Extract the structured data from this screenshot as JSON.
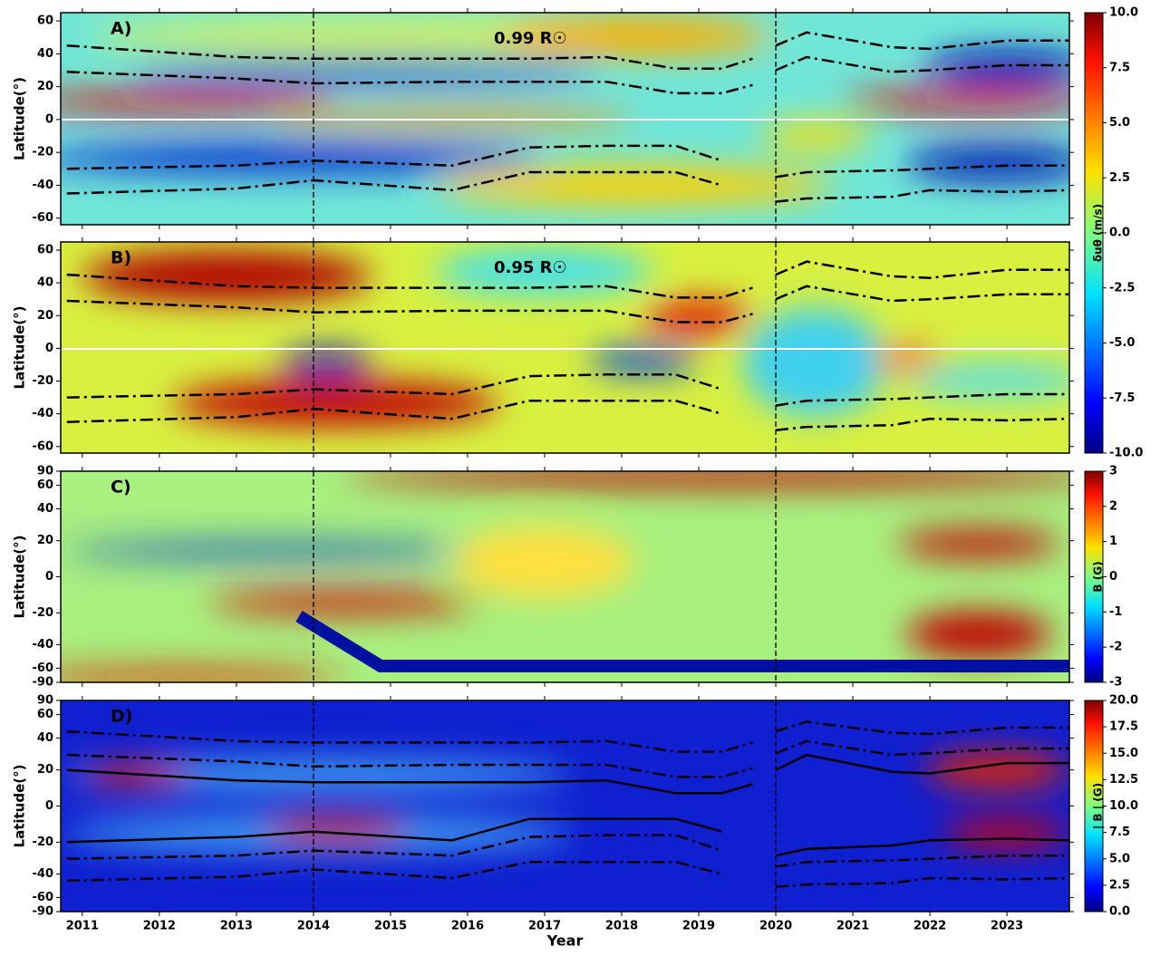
{
  "chart_data": [
    {
      "type": "heatmap",
      "title": "A)",
      "annotation": "0.99 R☉",
      "ylabel": "Latitude(°)",
      "xlim": [
        2010.72,
        2023.81
      ],
      "xticks": [
        2011,
        2012,
        2013,
        2014,
        2015,
        2016,
        2017,
        2018,
        2019,
        2020,
        2021,
        2022,
        2023
      ],
      "ylim": [
        -64,
        65
      ],
      "yticks": [
        -60,
        -40,
        -20,
        0,
        20,
        40,
        60
      ],
      "yscale": "linear",
      "vlines": [
        2014,
        2020
      ],
      "x": [
        2010.8,
        2013,
        2014,
        2015.8,
        2016.8,
        2017.8,
        2018.7,
        2019.3,
        2019.7,
        2019.85,
        2020,
        2020.4,
        2021.5,
        2022,
        2023,
        2023.8
      ],
      "series": [
        {
          "color": "#000000",
          "dash": "dashdot",
          "values": [
            45,
            38,
            37,
            37,
            37,
            38,
            31,
            31,
            37,
            null,
            45,
            53,
            44,
            43,
            48,
            48
          ]
        },
        {
          "color": "#000000",
          "dash": "dashdot",
          "values": [
            29,
            25,
            22,
            23,
            23,
            23,
            16,
            16,
            21,
            null,
            30,
            38,
            29,
            30,
            33,
            33
          ]
        },
        {
          "color": "#000000",
          "dash": "dashdot",
          "values": [
            -30,
            -28,
            -25,
            -28,
            -17,
            -16,
            -16,
            -25,
            null,
            null,
            -35,
            -32,
            -31,
            -30,
            -28,
            -28
          ]
        },
        {
          "color": "#000000",
          "dash": "dashdot",
          "values": [
            -45,
            -42,
            -37,
            -43,
            -32,
            -32,
            -32,
            -40,
            null,
            null,
            -50,
            -48,
            -47,
            -43,
            -44,
            -43
          ]
        }
      ],
      "colorbar": {
        "label": "δuθ (m/s)",
        "lim": [
          -10,
          10
        ],
        "ticks": [
          {
            "value": -10,
            "label": "-10.0"
          },
          {
            "value": -7.5,
            "label": "-7.5"
          },
          {
            "value": -5,
            "label": "-5.0"
          },
          {
            "value": -2.5,
            "label": "-2.5"
          },
          {
            "value": 0,
            "label": "0.0"
          },
          {
            "value": 2.5,
            "label": "2.5"
          },
          {
            "value": 5,
            "label": "5.0"
          },
          {
            "value": 7.5,
            "label": "7.5"
          },
          {
            "value": 10,
            "label": "10.0"
          }
        ]
      }
    },
    {
      "type": "heatmap",
      "title": "B)",
      "annotation": "0.95 R☉",
      "ylabel": "Latitude(°)",
      "xlim": [
        2010.72,
        2023.81
      ],
      "xticks": [
        2011,
        2012,
        2013,
        2014,
        2015,
        2016,
        2017,
        2018,
        2019,
        2020,
        2021,
        2022,
        2023
      ],
      "ylim": [
        -64,
        65
      ],
      "yticks": [
        -60,
        -40,
        -20,
        0,
        20,
        40,
        60
      ],
      "yscale": "linear",
      "vlines": [
        2014,
        2020
      ],
      "x": [
        2010.8,
        2013,
        2014,
        2015.8,
        2016.8,
        2017.8,
        2018.7,
        2019.3,
        2019.7,
        2019.85,
        2020,
        2020.4,
        2021.5,
        2022,
        2023,
        2023.8
      ],
      "series": [
        {
          "color": "#000000",
          "dash": "dashdot",
          "values": [
            45,
            38,
            37,
            37,
            37,
            38,
            31,
            31,
            37,
            null,
            45,
            53,
            44,
            43,
            48,
            48
          ]
        },
        {
          "color": "#000000",
          "dash": "dashdot",
          "values": [
            29,
            25,
            22,
            23,
            23,
            23,
            16,
            16,
            21,
            null,
            30,
            38,
            29,
            30,
            33,
            33
          ]
        },
        {
          "color": "#000000",
          "dash": "dashdot",
          "values": [
            -30,
            -28,
            -25,
            -28,
            -17,
            -16,
            -16,
            -25,
            null,
            null,
            -35,
            -32,
            -31,
            -30,
            -28,
            -28
          ]
        },
        {
          "color": "#000000",
          "dash": "dashdot",
          "values": [
            -45,
            -42,
            -37,
            -43,
            -32,
            -32,
            -32,
            -40,
            null,
            null,
            -50,
            -48,
            -47,
            -43,
            -44,
            -43
          ]
        }
      ]
    },
    {
      "type": "heatmap",
      "title": "C)",
      "ylabel": "Latitude(°)",
      "xlim": [
        2010.72,
        2023.81
      ],
      "xticks": [
        2011,
        2012,
        2013,
        2014,
        2015,
        2016,
        2017,
        2018,
        2019,
        2020,
        2021,
        2022,
        2023
      ],
      "ylim": [
        -90,
        90
      ],
      "yticks": [
        -90,
        -60,
        -40,
        -20,
        0,
        20,
        40,
        60,
        90
      ],
      "yscale": "sine",
      "vlines": [
        2014,
        2020
      ],
      "colorbar": {
        "label": "B (G)",
        "lim": [
          -3,
          3
        ],
        "ticks": [
          -3,
          -2,
          -1,
          0,
          1,
          2,
          3
        ]
      }
    },
    {
      "type": "heatmap",
      "title": "D)",
      "ylabel": "Latitude(°)",
      "xlabel": "Year",
      "xlim": [
        2010.72,
        2023.81
      ],
      "xticks": [
        2011,
        2012,
        2013,
        2014,
        2015,
        2016,
        2017,
        2018,
        2019,
        2020,
        2021,
        2022,
        2023
      ],
      "ylim": [
        -90,
        90
      ],
      "yticks": [
        -90,
        -60,
        -40,
        -20,
        0,
        20,
        40,
        60,
        90
      ],
      "yscale": "sine",
      "vlines": [
        2014,
        2020
      ],
      "x": [
        2010.8,
        2013,
        2014,
        2015.8,
        2016.8,
        2017.8,
        2018.7,
        2019.3,
        2019.7,
        2019.85,
        2020,
        2020.4,
        2021.5,
        2022,
        2023,
        2023.8
      ],
      "series": [
        {
          "color": "#000000",
          "dash": "dashdot",
          "values": [
            45,
            38,
            37,
            37,
            37,
            38,
            31,
            31,
            37,
            null,
            45,
            53,
            44,
            43,
            48,
            48
          ]
        },
        {
          "color": "#000000",
          "dash": "dashdot",
          "values": [
            29,
            25,
            22,
            23,
            23,
            23,
            16,
            16,
            21,
            null,
            30,
            38,
            29,
            30,
            33,
            33
          ]
        },
        {
          "color": "#000000",
          "dash": "dashdot",
          "values": [
            -30,
            -28,
            -25,
            -28,
            -17,
            -16,
            -16,
            -25,
            null,
            null,
            -35,
            -32,
            -31,
            -30,
            -28,
            -28
          ]
        },
        {
          "color": "#000000",
          "dash": "dashdot",
          "values": [
            -45,
            -42,
            -37,
            -43,
            -32,
            -32,
            -32,
            -40,
            null,
            null,
            -50,
            -48,
            -47,
            -43,
            -44,
            -43
          ]
        },
        {
          "color": "#000000",
          "dash": "solid",
          "values": [
            20,
            14,
            13,
            13,
            13,
            14,
            7,
            7,
            12,
            null,
            20,
            29,
            19,
            18,
            24,
            24
          ]
        },
        {
          "color": "#000000",
          "dash": "solid",
          "values": [
            -20,
            -17,
            -14,
            -19,
            -7,
            -7,
            -7,
            -14,
            null,
            null,
            -28,
            -24,
            -22,
            -19,
            -18,
            -19
          ]
        }
      ],
      "colorbar": {
        "label": "| B | (G)",
        "lim": [
          0,
          20
        ],
        "ticks": [
          {
            "value": 0,
            "label": "0.0"
          },
          {
            "value": 2.5,
            "label": "2.5"
          },
          {
            "value": 5,
            "label": "5.0"
          },
          {
            "value": 7.5,
            "label": "7.5"
          },
          {
            "value": 10,
            "label": "10.0"
          },
          {
            "value": 12.5,
            "label": "12.5"
          },
          {
            "value": 15,
            "label": "15.0"
          },
          {
            "value": 17.5,
            "label": "17.5"
          },
          {
            "value": 20,
            "label": "20.0"
          }
        ]
      }
    }
  ]
}
